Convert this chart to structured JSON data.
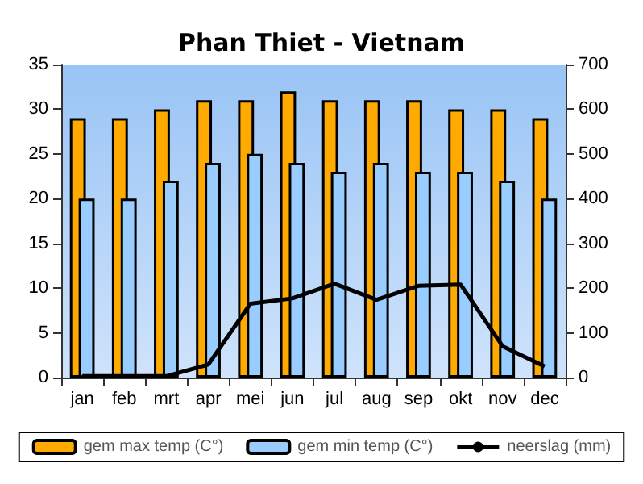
{
  "chart_data": {
    "type": "bar",
    "title": "Phan Thiet - Vietnam",
    "categories": [
      "jan",
      "feb",
      "mrt",
      "apr",
      "mei",
      "jun",
      "jul",
      "aug",
      "sep",
      "okt",
      "nov",
      "dec"
    ],
    "series": [
      {
        "name": "gem max temp (C°)",
        "color": "#ffaa00",
        "values": [
          29,
          29,
          30,
          31,
          31,
          32,
          31,
          31,
          31,
          30,
          30,
          29
        ]
      },
      {
        "name": "gem min temp (C°)",
        "color": "#99ccff",
        "values": [
          20,
          20,
          22,
          24,
          25,
          24,
          23,
          24,
          23,
          23,
          22,
          20
        ]
      },
      {
        "name": "neerslag (mm)",
        "type": "line",
        "axis": "y2",
        "color": "#000000",
        "values": [
          3,
          3,
          3,
          29,
          165,
          177,
          210,
          174,
          205,
          208,
          70,
          25
        ]
      }
    ],
    "ylim": [
      0,
      35
    ],
    "yticks": [
      0,
      5,
      10,
      15,
      20,
      25,
      30,
      35
    ],
    "y2lim": [
      0,
      700
    ],
    "y2ticks": [
      0,
      100,
      200,
      300,
      400,
      500,
      600,
      700
    ],
    "grid": false,
    "legend": "bottom",
    "marker": "none"
  }
}
